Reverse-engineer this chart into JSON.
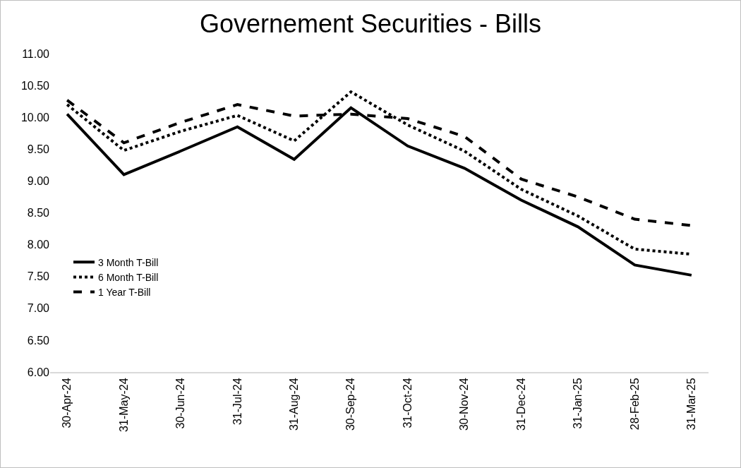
{
  "chart_data": {
    "type": "line",
    "title": "Governement Securities - Bills",
    "categories": [
      "30-Apr-24",
      "31-May-24",
      "30-Jun-24",
      "31-Jul-24",
      "31-Aug-24",
      "30-Sep-24",
      "31-Oct-24",
      "30-Nov-24",
      "31-Dec-24",
      "31-Jan-25",
      "28-Feb-25",
      "31-Mar-25"
    ],
    "series": [
      {
        "name": "3 Month T-Bill",
        "color": "#000000",
        "line_style": "solid",
        "values": [
          10.05,
          9.1,
          9.47,
          9.85,
          9.34,
          10.15,
          9.55,
          9.2,
          8.7,
          8.28,
          7.68,
          7.52
        ]
      },
      {
        "name": "6 Month T-Bill",
        "color": "#000000",
        "line_style": "dotted",
        "values": [
          10.2,
          9.48,
          9.78,
          10.03,
          9.63,
          10.4,
          9.88,
          9.47,
          8.87,
          8.45,
          7.93,
          7.85
        ]
      },
      {
        "name": "1 Year T-Bill",
        "color": "#000000",
        "line_style": "dashed",
        "values": [
          10.27,
          9.6,
          9.92,
          10.2,
          10.02,
          10.05,
          9.98,
          9.7,
          9.03,
          8.75,
          8.4,
          8.3
        ]
      }
    ],
    "ylim": [
      6,
      11
    ],
    "yticks": [
      {
        "value": 6,
        "label": "6.00"
      },
      {
        "value": 6.5,
        "label": "6.50"
      },
      {
        "value": 7,
        "label": "7.00"
      },
      {
        "value": 7.5,
        "label": "7.50"
      },
      {
        "value": 8,
        "label": "8.00"
      },
      {
        "value": 8.5,
        "label": "8.50"
      },
      {
        "value": 9,
        "label": "9.00"
      },
      {
        "value": 9.5,
        "label": "9.50"
      },
      {
        "value": 10,
        "label": "10.00"
      },
      {
        "value": 10.5,
        "label": "10.50"
      },
      {
        "value": 11,
        "label": "11.00"
      }
    ],
    "grid": false,
    "legend": "left",
    "marker": "none"
  }
}
